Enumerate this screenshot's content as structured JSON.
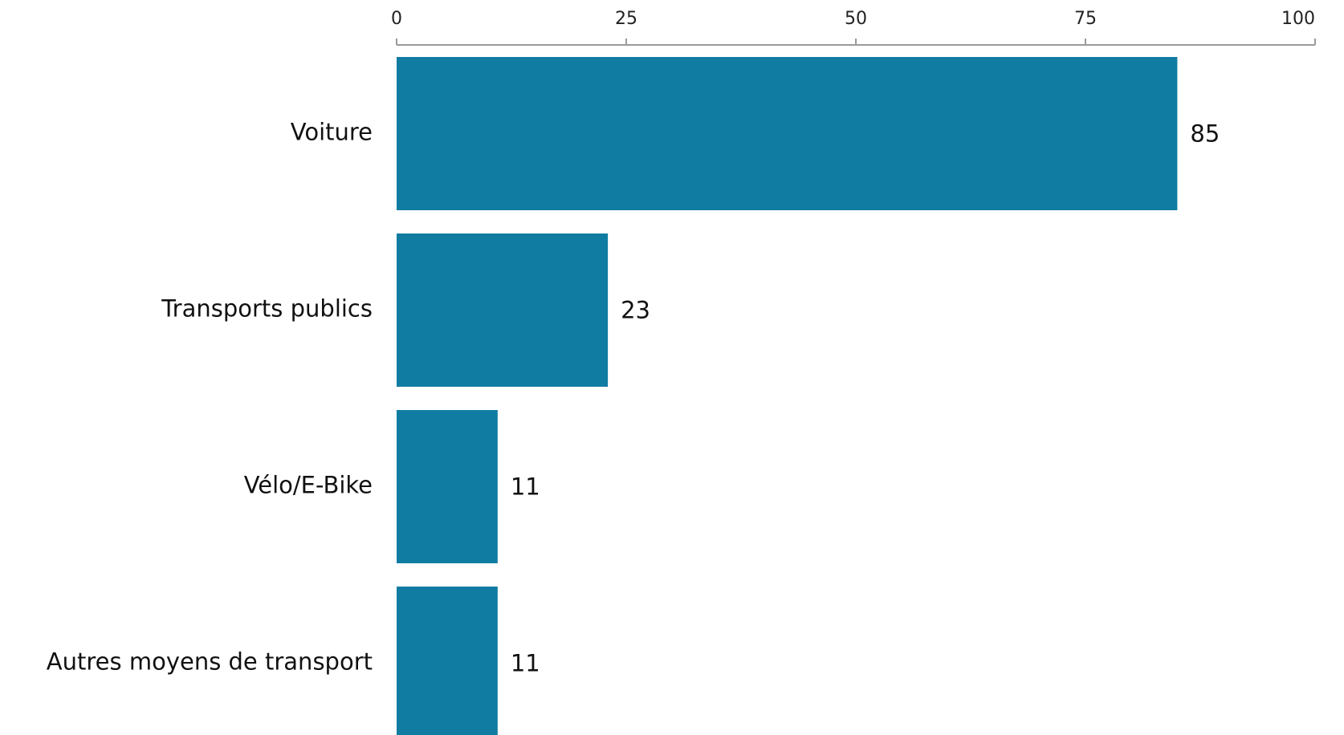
{
  "chart_data": {
    "type": "bar",
    "orientation": "horizontal",
    "categories": [
      "Voiture",
      "Transports publics",
      "Vélo/E-Bike",
      "Autres moyens de transport"
    ],
    "values": [
      85,
      23,
      11,
      11
    ],
    "xlim": [
      0,
      100
    ],
    "xticks": [
      0,
      25,
      50,
      75,
      100
    ],
    "x_axis_position": "top",
    "title": "",
    "xlabel": "",
    "ylabel": "",
    "grid": false,
    "legend": "none",
    "bar_color": "#117ca2"
  }
}
